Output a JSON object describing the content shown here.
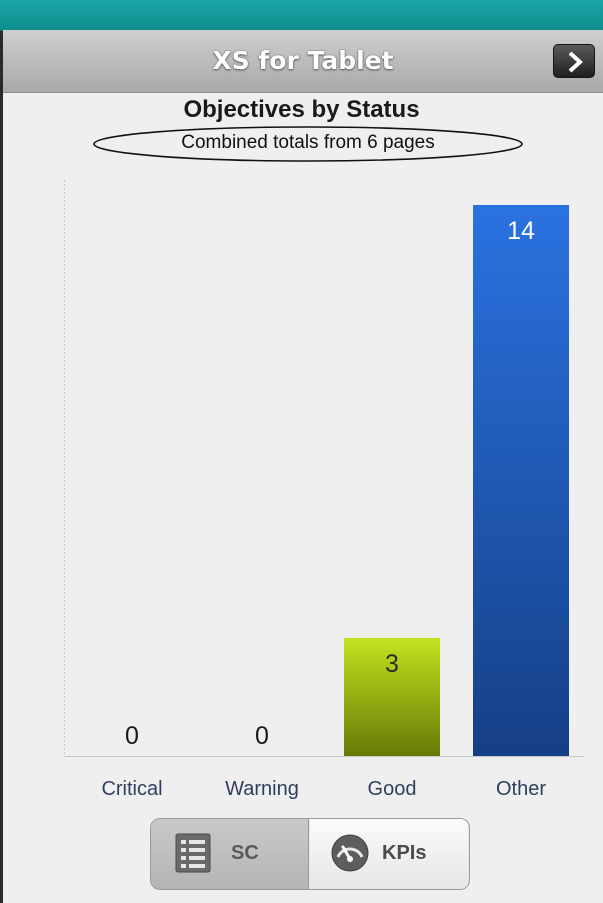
{
  "app": {
    "title": "XS for Tablet"
  },
  "chart_data": {
    "type": "bar",
    "title": "Objectives by Status",
    "subtitle": "Combined totals from 6 pages",
    "categories": [
      "Critical",
      "Warning",
      "Good",
      "Other"
    ],
    "values": [
      0,
      0,
      3,
      14
    ],
    "value_labels": [
      "0",
      "0",
      "3",
      "14"
    ],
    "bar_colors": [
      "#c0392b",
      "#e0b400",
      "#9bc21f",
      "#1f63c8"
    ],
    "ylim": [
      0,
      14
    ],
    "grid": false,
    "xlabel": "",
    "ylabel": ""
  },
  "tabs": [
    {
      "label": "SC",
      "icon": "list-icon",
      "selected": true
    },
    {
      "label": "KPIs",
      "icon": "gauge-icon",
      "selected": false
    }
  ]
}
